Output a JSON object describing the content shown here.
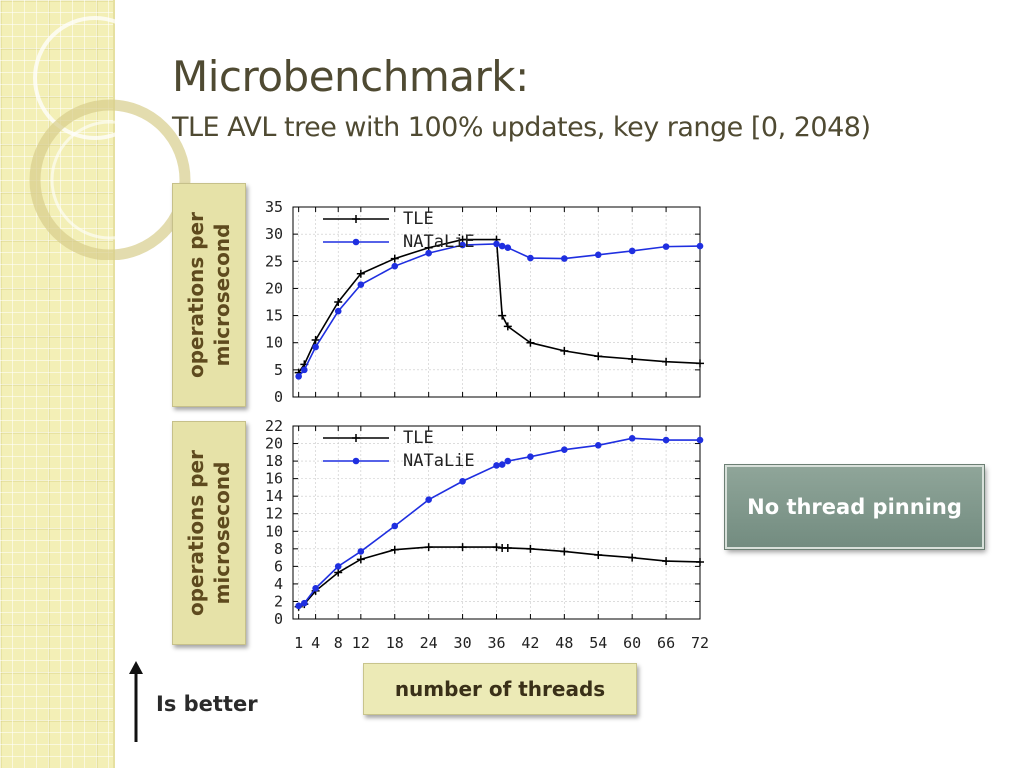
{
  "slide": {
    "title": "Microbenchmark:",
    "subtitle": "TLE AVL tree with 100% updates, key range [0, 2048)",
    "x_axis_label": "number of threads",
    "y_axis_label": "operations per\nmicrosecond",
    "note": "No thread pinning",
    "is_better": "Is better"
  },
  "colors": {
    "tle": "#000000",
    "natalie": "#1f2fe0",
    "grid": "#c8c8c8"
  },
  "chart_data": [
    {
      "type": "line",
      "xlabel": "number of threads",
      "ylabel": "operations per microsecond",
      "xlim": [
        0,
        72
      ],
      "ylim": [
        0,
        35
      ],
      "yticks": [
        "0",
        "5",
        "10",
        "15",
        "20",
        "25",
        "30",
        "35"
      ],
      "xticks": [
        "1",
        "4",
        "8",
        "12",
        "18",
        "24",
        "30",
        "36",
        "42",
        "48",
        "54",
        "60",
        "66",
        "72"
      ],
      "show_xtick_labels": false,
      "grid": true,
      "legend_position": "top-left",
      "series": [
        {
          "name": "TLE",
          "marker": "plus",
          "color": "#000000",
          "x": [
            1,
            2,
            4,
            8,
            12,
            18,
            24,
            30,
            36,
            37,
            38,
            42,
            48,
            54,
            60,
            66,
            72
          ],
          "y": [
            4.5,
            6.0,
            10.5,
            17.5,
            22.7,
            25.5,
            27.5,
            29.0,
            29.0,
            15.0,
            13.0,
            10.0,
            8.5,
            7.5,
            7.0,
            6.5,
            6.2
          ]
        },
        {
          "name": "NATaLiE",
          "marker": "dot",
          "color": "#1f2fe0",
          "x": [
            1,
            2,
            4,
            8,
            12,
            18,
            24,
            30,
            36,
            37,
            38,
            42,
            48,
            54,
            60,
            66,
            72
          ],
          "y": [
            3.8,
            5.0,
            9.2,
            15.8,
            20.7,
            24.1,
            26.5,
            28.0,
            28.2,
            27.8,
            27.5,
            25.6,
            25.5,
            26.2,
            26.9,
            27.7,
            27.8
          ]
        }
      ]
    },
    {
      "type": "line",
      "xlabel": "number of threads",
      "ylabel": "operations per microsecond",
      "xlim": [
        0,
        72
      ],
      "ylim": [
        0,
        22
      ],
      "yticks": [
        "0",
        "2",
        "4",
        "6",
        "8",
        "10",
        "12",
        "14",
        "16",
        "18",
        "20",
        "22"
      ],
      "xticks": [
        "1",
        "4",
        "8",
        "12",
        "18",
        "24",
        "30",
        "36",
        "42",
        "48",
        "54",
        "60",
        "66",
        "72"
      ],
      "show_xtick_labels": true,
      "grid": true,
      "legend_position": "top-left",
      "series": [
        {
          "name": "TLE",
          "marker": "plus",
          "color": "#000000",
          "x": [
            1,
            2,
            4,
            8,
            12,
            18,
            24,
            30,
            36,
            37,
            38,
            42,
            48,
            54,
            60,
            66,
            72
          ],
          "y": [
            1.4,
            1.7,
            3.2,
            5.3,
            6.8,
            7.9,
            8.2,
            8.2,
            8.2,
            8.1,
            8.1,
            8.0,
            7.7,
            7.3,
            7.0,
            6.6,
            6.5
          ]
        },
        {
          "name": "NATaLiE",
          "marker": "dot",
          "color": "#1f2fe0",
          "x": [
            1,
            2,
            4,
            8,
            12,
            18,
            24,
            30,
            36,
            37,
            38,
            42,
            48,
            54,
            60,
            66,
            72
          ],
          "y": [
            1.5,
            1.8,
            3.5,
            6.0,
            7.7,
            10.6,
            13.6,
            15.7,
            17.5,
            17.6,
            18.0,
            18.5,
            19.3,
            19.8,
            20.6,
            20.4,
            20.4
          ]
        }
      ]
    }
  ]
}
